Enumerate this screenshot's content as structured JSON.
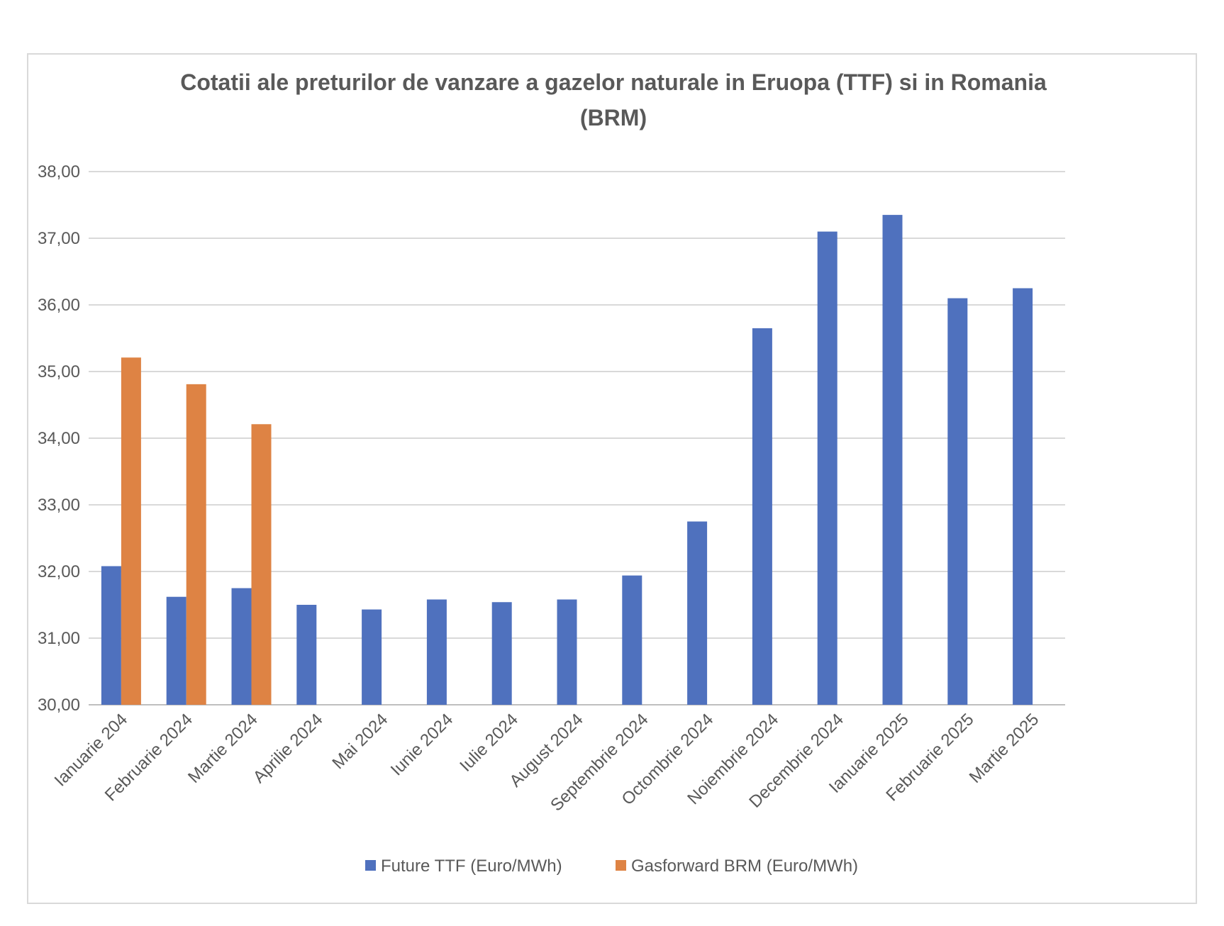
{
  "chart_data": {
    "type": "bar",
    "title": "Cotatii ale preturilor de vanzare a gazelor naturale in Eruopa (TTF) si in Romania (BRM)",
    "title_lines": [
      "Cotatii ale preturilor de vanzare a gazelor naturale in Eruopa (TTF) si in Romania",
      "(BRM)"
    ],
    "categories": [
      "Ianuarie 204",
      "Februarie 2024",
      "Martie 2024",
      "Aprilie 2024",
      "Mai 2024",
      "Iunie 2024",
      "Iulie 2024",
      "August 2024",
      "Septembrie 2024",
      "Octombrie 2024",
      "Noiembrie 2024",
      "Decembrie 2024",
      "Ianuarie 2025",
      "Februarie 2025",
      "Martie 2025"
    ],
    "series": [
      {
        "name": "Future TTF (Euro/MWh)",
        "color": "#4F71BE",
        "values": [
          32.08,
          31.62,
          31.75,
          31.5,
          31.43,
          31.58,
          31.54,
          31.58,
          31.94,
          32.75,
          35.65,
          37.1,
          37.35,
          36.1,
          36.25
        ]
      },
      {
        "name": "Gasforward BRM (Euro/MWh)",
        "color": "#DE8344",
        "values": [
          35.21,
          34.81,
          34.21,
          null,
          null,
          null,
          null,
          null,
          null,
          null,
          null,
          null,
          null,
          null,
          null
        ]
      }
    ],
    "ylim": [
      30,
      38
    ],
    "yticks": [
      "30,00",
      "31,00",
      "32,00",
      "33,00",
      "34,00",
      "35,00",
      "36,00",
      "37,00",
      "38,00"
    ],
    "xlabel": "",
    "ylabel": "",
    "grid": true,
    "legend": "bottom"
  }
}
